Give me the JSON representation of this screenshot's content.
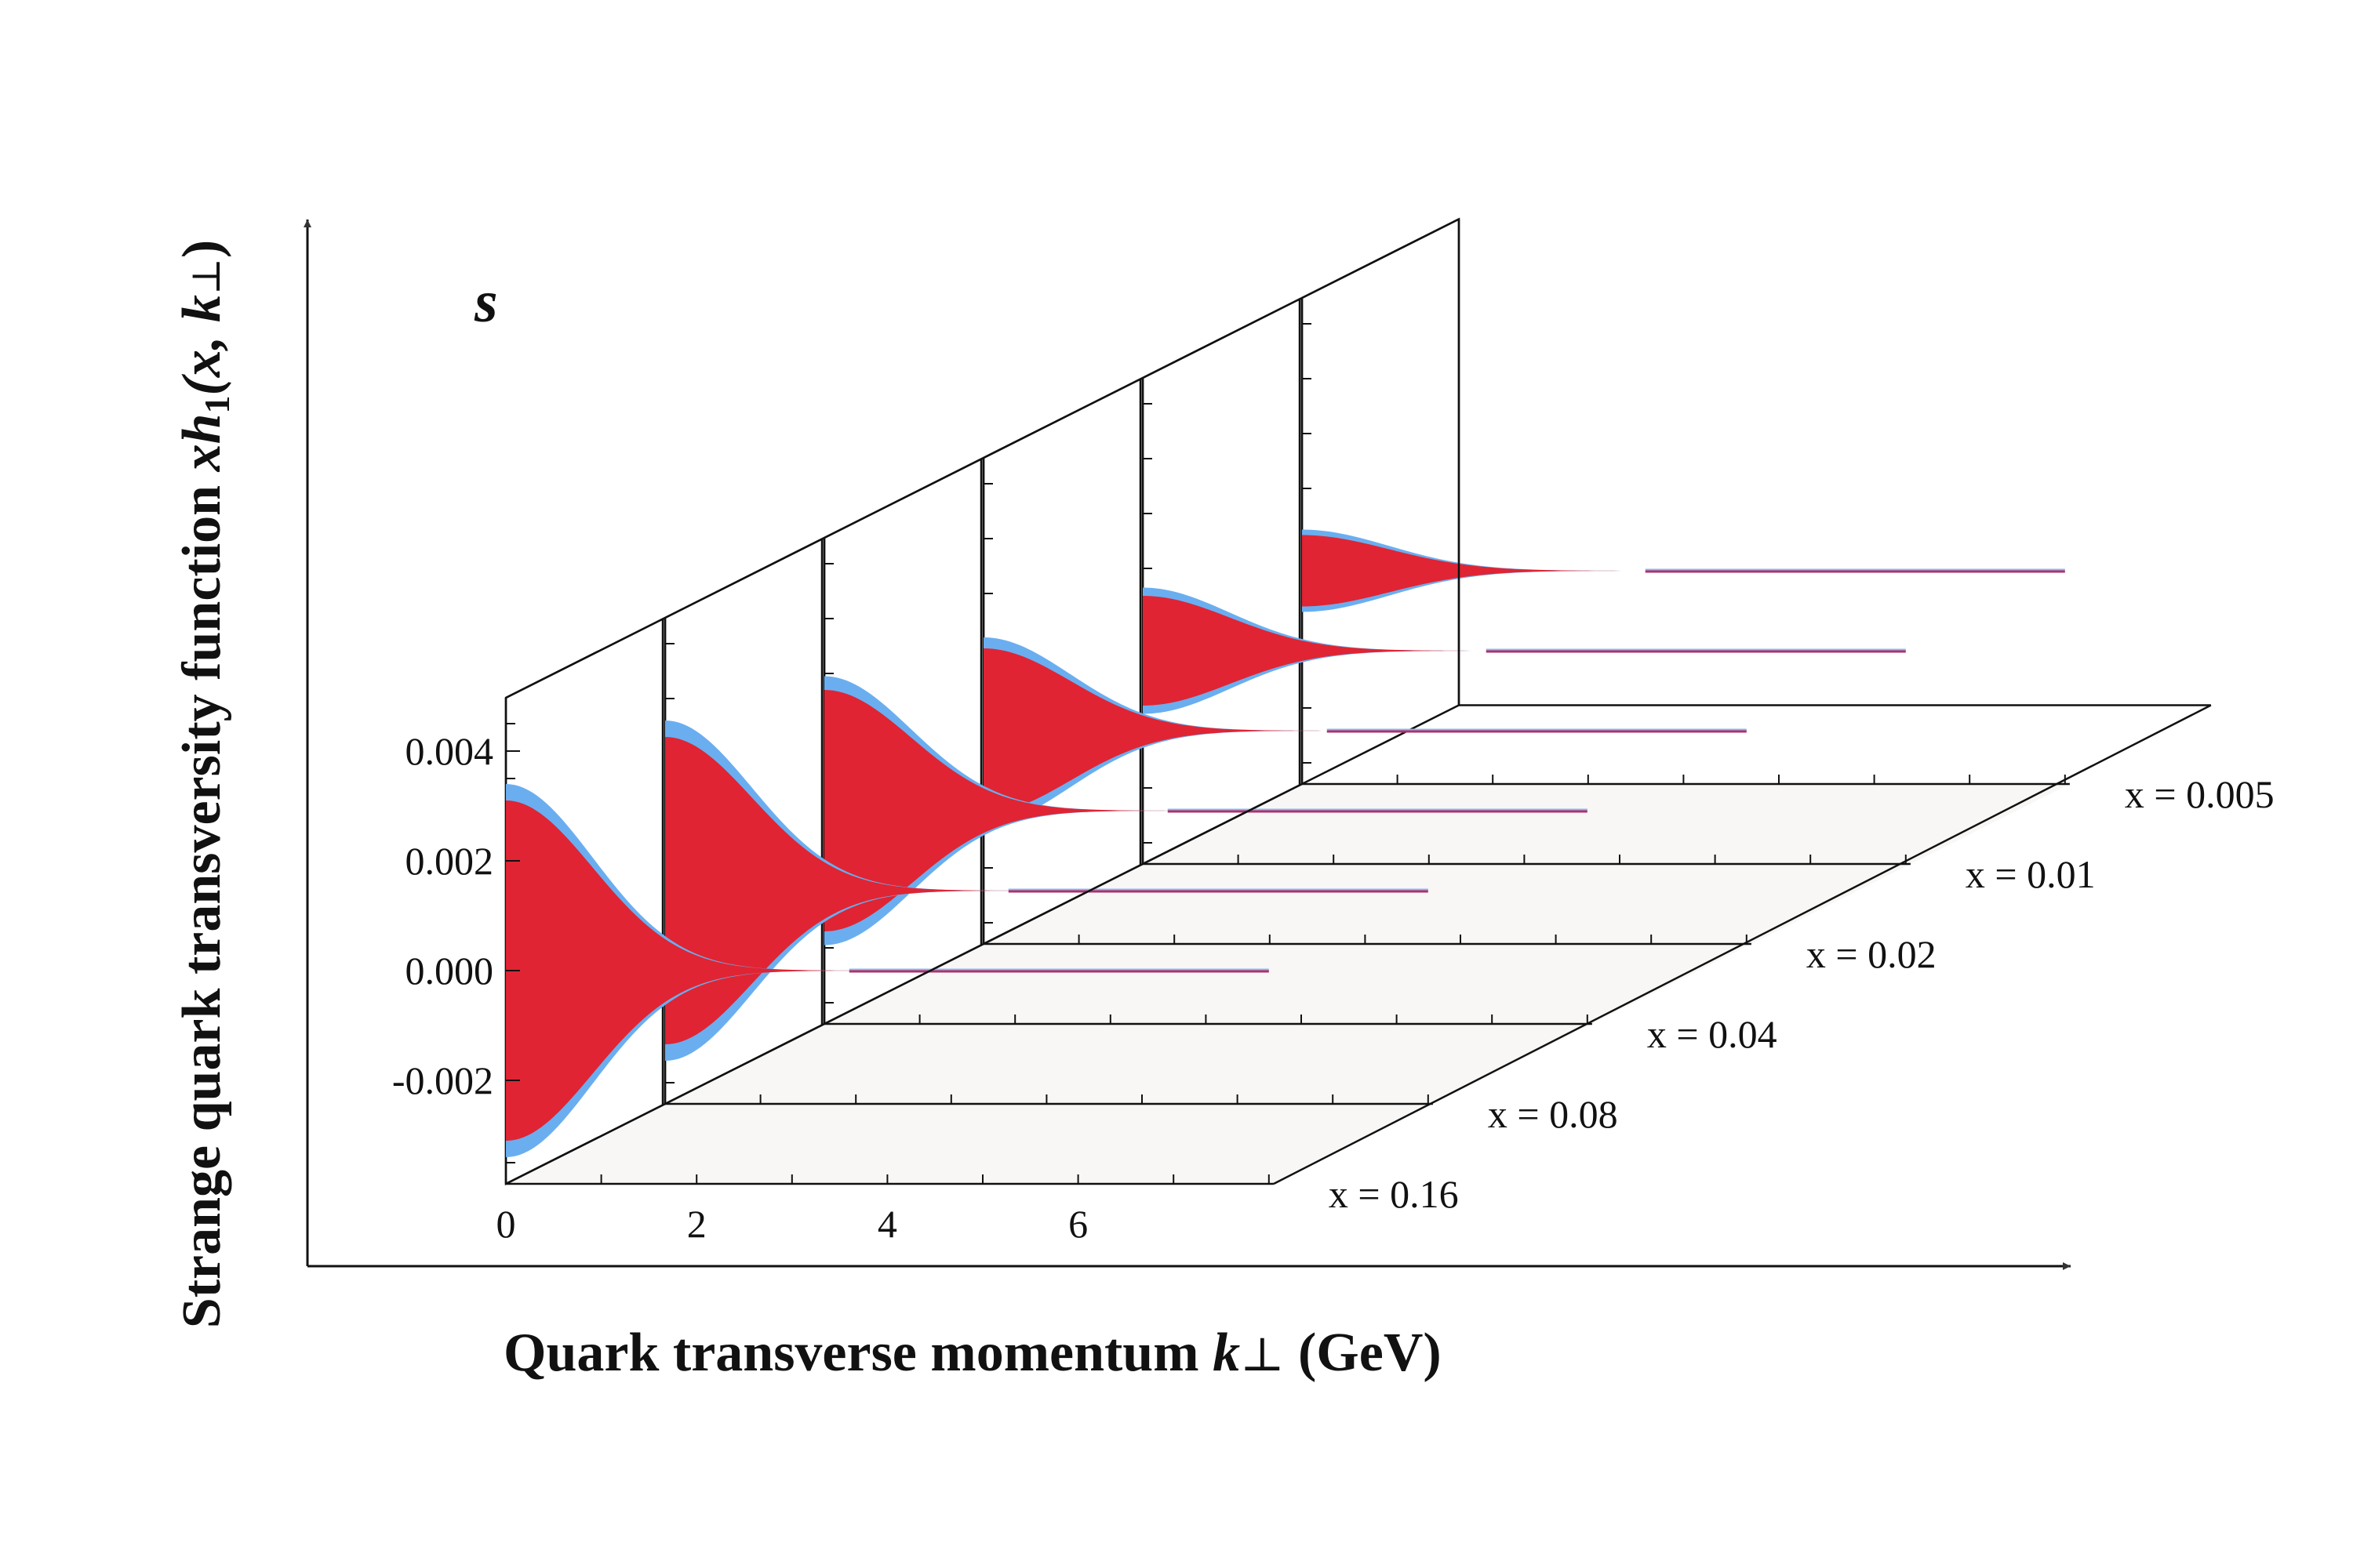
{
  "flavor_label": "s",
  "colors": {
    "band": "#6aaef0",
    "core": "#e02433",
    "panel": "#f8f7f5",
    "edge": "#111111"
  },
  "chart_data": {
    "type": "area",
    "title": "",
    "flavor": "s",
    "xlabel_prefix": "Quark transverse momentum ",
    "xlabel_symbol": "k",
    "xlabel_sub": "⊥",
    "xlabel_suffix": " (GeV)",
    "ylabel_prefix": "Strange quark transversity function ",
    "ylabel_func": "xh",
    "ylabel_sub1": "1",
    "ylabel_args_open": "(x, ",
    "ylabel_k": "k",
    "ylabel_sub2": "⊥",
    "ylabel_args_close": ")",
    "x_ticks": [
      "0",
      "2",
      "4",
      "6"
    ],
    "x_tick_values": [
      0,
      2,
      4,
      6
    ],
    "y_ticks": [
      "0.004",
      "0.002",
      "0.000",
      "-0.002"
    ],
    "y_tick_values": [
      0.004,
      0.002,
      0.0,
      -0.002
    ],
    "xlim": [
      0,
      8
    ],
    "ylim": [
      -0.0038,
      0.0052
    ],
    "grid": false,
    "slices": [
      {
        "label": "x = 0.16",
        "x": 0.16,
        "amplitude": 0.0031,
        "band_width": 0.0003,
        "width": 1.6
      },
      {
        "label": "x = 0.08",
        "x": 0.08,
        "amplitude": 0.0028,
        "band_width": 0.0003,
        "width": 1.6
      },
      {
        "label": "x = 0.04",
        "x": 0.04,
        "amplitude": 0.0022,
        "band_width": 0.00025,
        "width": 1.6
      },
      {
        "label": "x = 0.02",
        "x": 0.02,
        "amplitude": 0.0015,
        "band_width": 0.0002,
        "width": 1.6
      },
      {
        "label": "x = 0.01",
        "x": 0.01,
        "amplitude": 0.001,
        "band_width": 0.00015,
        "width": 1.6
      },
      {
        "label": "x = 0.005",
        "x": 0.005,
        "amplitude": 0.00065,
        "band_width": 0.0001,
        "width": 1.6
      }
    ]
  }
}
